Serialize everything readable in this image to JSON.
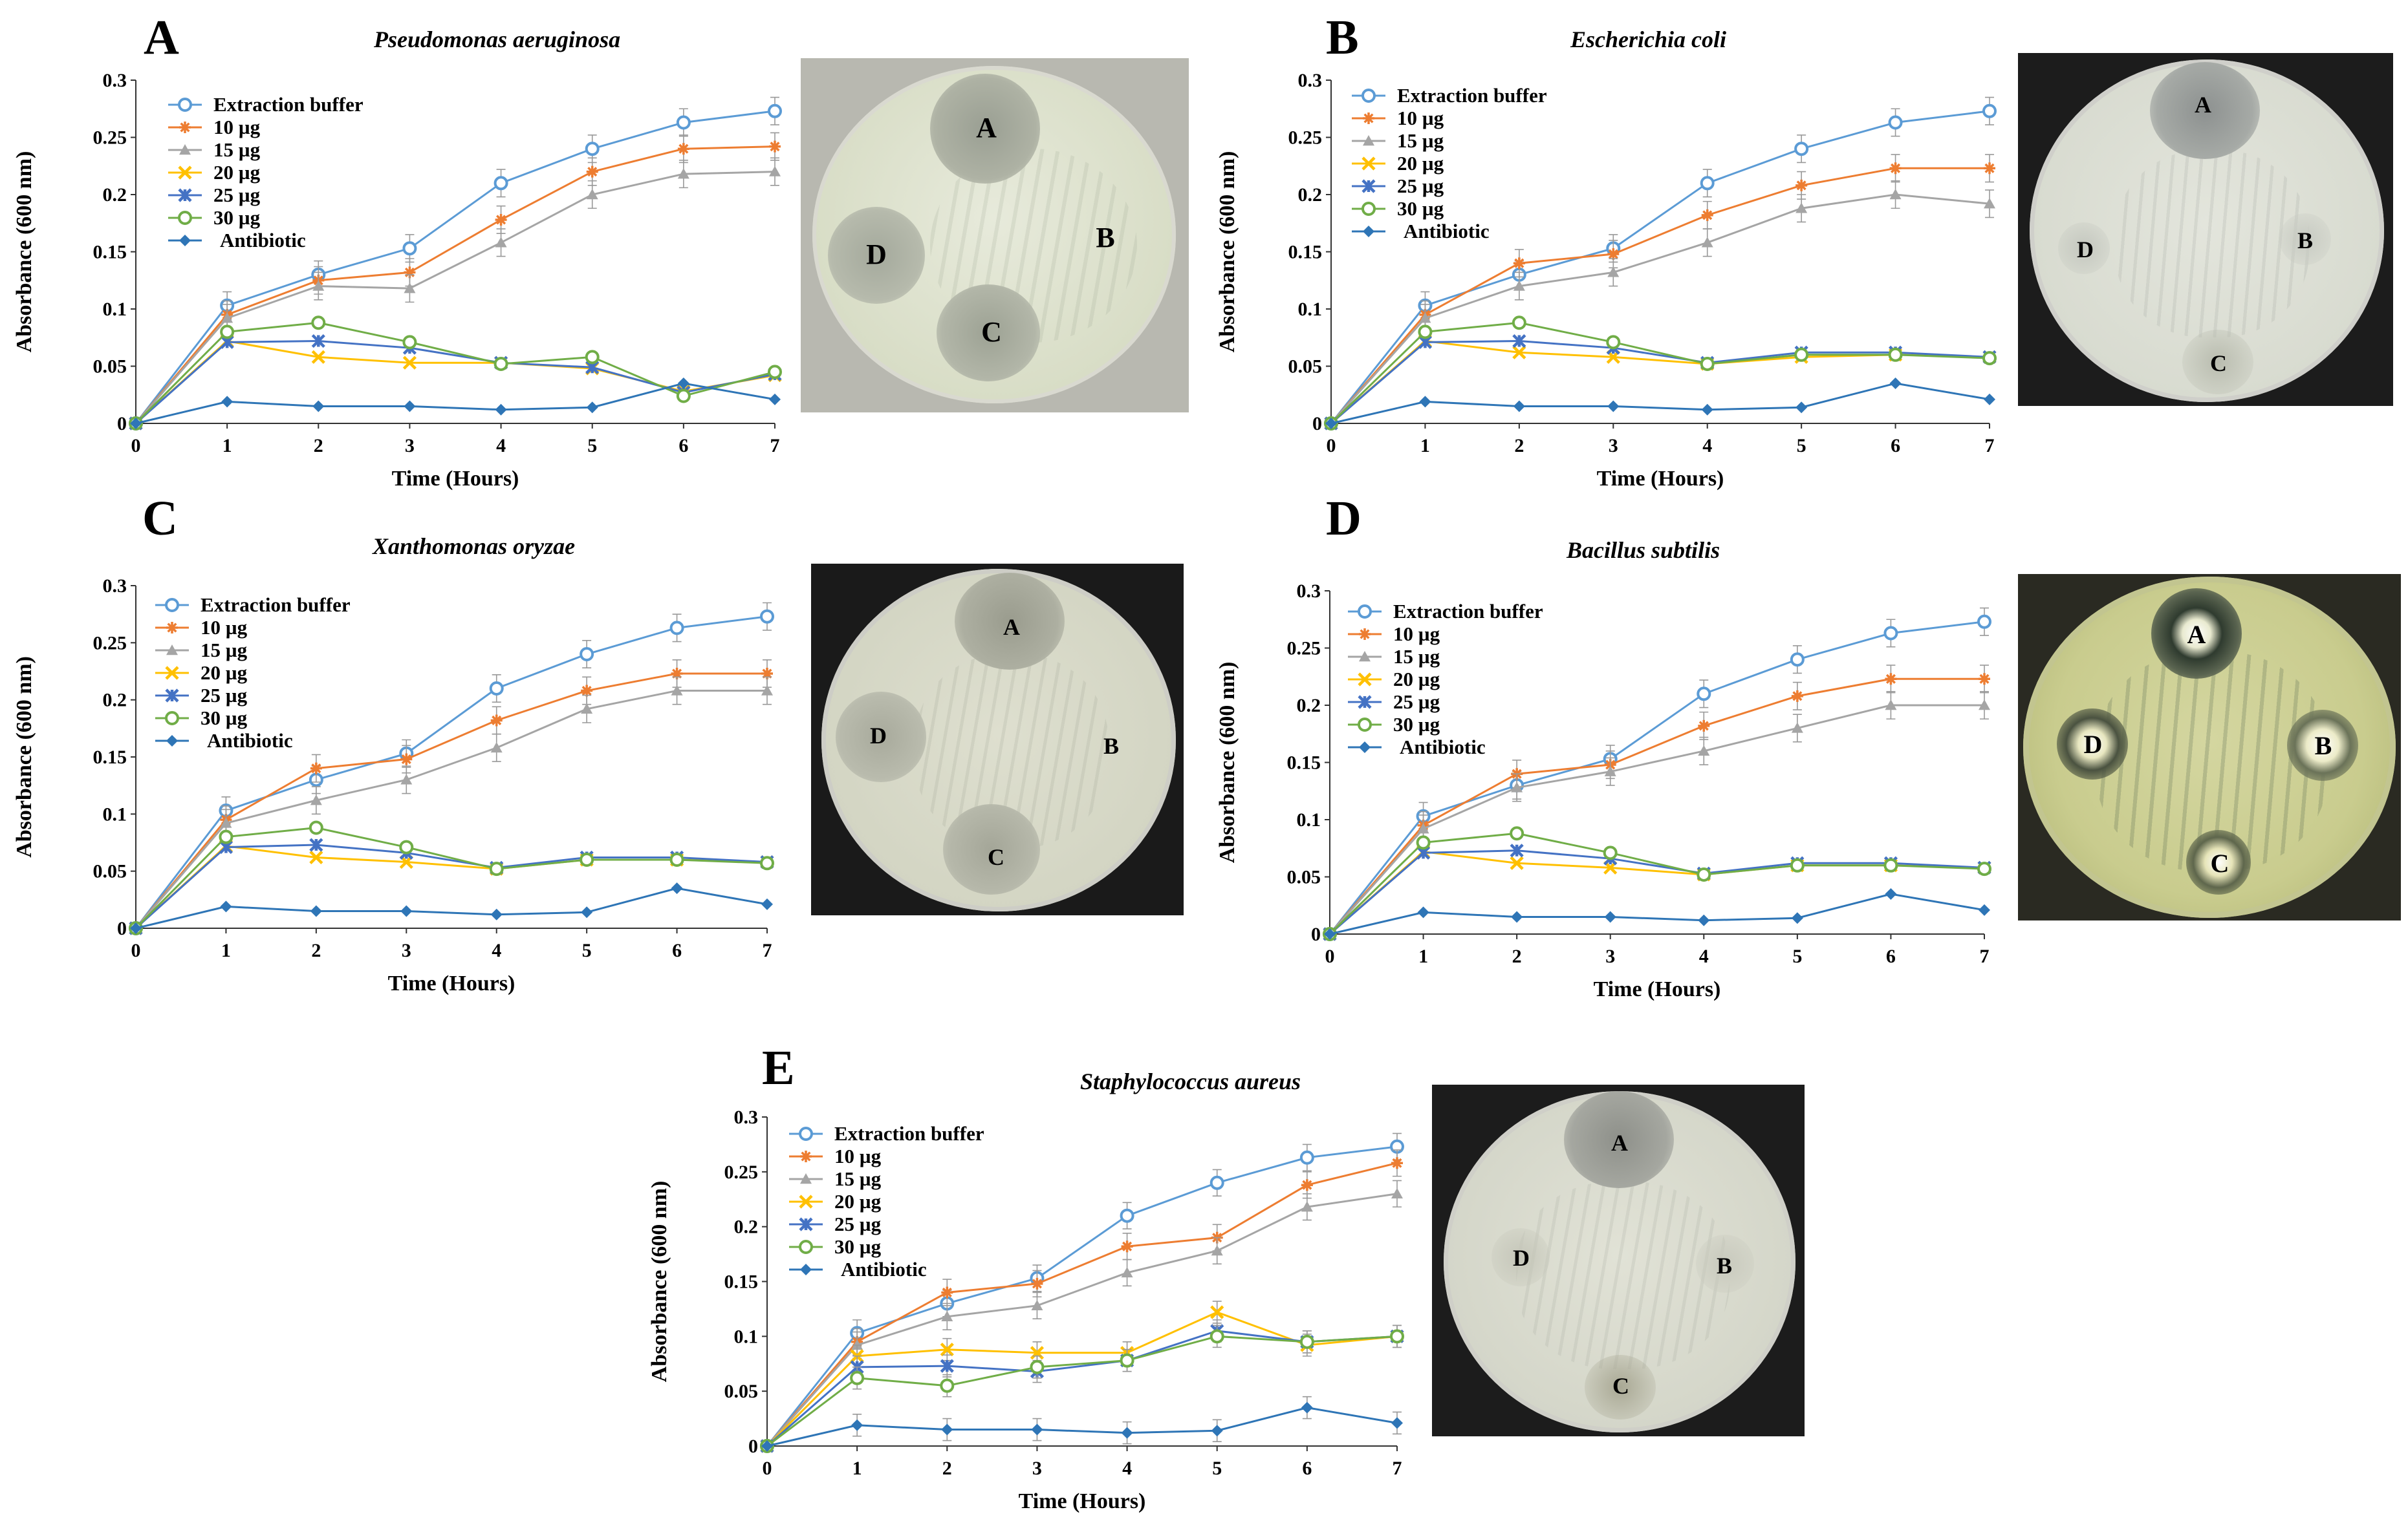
{
  "chart_data": [
    {
      "panel": "A",
      "title": "Pseudomonas aeruginosa",
      "type": "line",
      "xlabel": "Time (Hours)",
      "ylabel": "Absorbance (600 nm)",
      "x": [
        0,
        1,
        2,
        3,
        4,
        5,
        6,
        7
      ],
      "xlim": [
        0,
        7
      ],
      "ylim": [
        0,
        0.3
      ],
      "yticks": [
        "0",
        "0.05",
        "0.1",
        "0.15",
        "0.2",
        "0.25",
        "0.3"
      ],
      "xticks": [
        "0",
        "1",
        "2",
        "3",
        "4",
        "5",
        "6",
        "7"
      ],
      "legend_position": "top-left",
      "series": [
        {
          "name": "Extraction buffer",
          "values": [
            0,
            0.103,
            0.13,
            0.153,
            0.21,
            0.24,
            0.263,
            0.273
          ]
        },
        {
          "name": "10 µg",
          "values": [
            0,
            0.095,
            0.125,
            0.132,
            0.178,
            0.22,
            0.24,
            0.242
          ]
        },
        {
          "name": "15 µg",
          "values": [
            0,
            0.092,
            0.12,
            0.118,
            0.158,
            0.2,
            0.218,
            0.22
          ]
        },
        {
          "name": "20 µg",
          "values": [
            0,
            0.072,
            0.058,
            0.053,
            0.053,
            0.048,
            0.028,
            0.042
          ]
        },
        {
          "name": "25 µg",
          "values": [
            0,
            0.071,
            0.072,
            0.066,
            0.053,
            0.049,
            0.027,
            0.043
          ]
        },
        {
          "name": "30 µg",
          "values": [
            0,
            0.08,
            0.088,
            0.071,
            0.052,
            0.058,
            0.024,
            0.045
          ]
        },
        {
          "name": "Antibiotic",
          "values": [
            0,
            0.019,
            0.015,
            0.015,
            0.012,
            0.014,
            0.035,
            0.021
          ]
        }
      ],
      "plate_labels": [
        "A",
        "B",
        "C",
        "D"
      ]
    },
    {
      "panel": "B",
      "title": "Escherichia coli",
      "type": "line",
      "xlabel": "Time (Hours)",
      "ylabel": "Absorbance (600 nm)",
      "x": [
        0,
        1,
        2,
        3,
        4,
        5,
        6,
        7
      ],
      "xlim": [
        0,
        7
      ],
      "ylim": [
        0,
        0.3
      ],
      "yticks": [
        "0",
        "0.05",
        "0.1",
        "0.15",
        "0.2",
        "0.25",
        "0.3"
      ],
      "xticks": [
        "0",
        "1",
        "2",
        "3",
        "4",
        "5",
        "6",
        "7"
      ],
      "legend_position": "top-left",
      "series": [
        {
          "name": "Extraction buffer",
          "values": [
            0,
            0.103,
            0.13,
            0.153,
            0.21,
            0.24,
            0.263,
            0.273
          ]
        },
        {
          "name": "10 µg",
          "values": [
            0,
            0.095,
            0.14,
            0.148,
            0.182,
            0.208,
            0.223,
            0.223
          ]
        },
        {
          "name": "15 µg",
          "values": [
            0,
            0.092,
            0.12,
            0.132,
            0.158,
            0.188,
            0.2,
            0.192
          ]
        },
        {
          "name": "20 µg",
          "values": [
            0,
            0.072,
            0.062,
            0.058,
            0.052,
            0.058,
            0.06,
            0.058
          ]
        },
        {
          "name": "25 µg",
          "values": [
            0,
            0.071,
            0.072,
            0.066,
            0.053,
            0.062,
            0.062,
            0.058
          ]
        },
        {
          "name": "30 µg",
          "values": [
            0,
            0.08,
            0.088,
            0.071,
            0.052,
            0.06,
            0.06,
            0.057
          ]
        },
        {
          "name": "Antibiotic",
          "values": [
            0,
            0.019,
            0.015,
            0.015,
            0.012,
            0.014,
            0.035,
            0.021
          ]
        }
      ],
      "plate_labels": [
        "A",
        "B",
        "C",
        "D"
      ]
    },
    {
      "panel": "C",
      "title": "Xanthomonas oryzae",
      "type": "line",
      "xlabel": "Time (Hours)",
      "ylabel": "Absorbance (600 nm)",
      "x": [
        0,
        1,
        2,
        3,
        4,
        5,
        6,
        7
      ],
      "xlim": [
        0,
        7
      ],
      "ylim": [
        0,
        0.3
      ],
      "yticks": [
        "0",
        "0.05",
        "0.1",
        "0.15",
        "0.2",
        "0.25",
        "0.3"
      ],
      "xticks": [
        "0",
        "1",
        "2",
        "3",
        "4",
        "5",
        "6",
        "7"
      ],
      "legend_position": "top-left",
      "series": [
        {
          "name": "Extraction buffer",
          "values": [
            0,
            0.103,
            0.13,
            0.153,
            0.21,
            0.24,
            0.263,
            0.273
          ]
        },
        {
          "name": "10 µg",
          "values": [
            0,
            0.095,
            0.14,
            0.148,
            0.182,
            0.208,
            0.223,
            0.223
          ]
        },
        {
          "name": "15 µg",
          "values": [
            0,
            0.092,
            0.112,
            0.13,
            0.158,
            0.192,
            0.208,
            0.208
          ]
        },
        {
          "name": "20 µg",
          "values": [
            0,
            0.072,
            0.062,
            0.058,
            0.052,
            0.06,
            0.06,
            0.058
          ]
        },
        {
          "name": "25 µg",
          "values": [
            0,
            0.071,
            0.073,
            0.066,
            0.053,
            0.062,
            0.062,
            0.058
          ]
        },
        {
          "name": "30 µg",
          "values": [
            0,
            0.08,
            0.088,
            0.071,
            0.052,
            0.06,
            0.06,
            0.057
          ]
        },
        {
          "name": "Antibiotic",
          "values": [
            0,
            0.019,
            0.015,
            0.015,
            0.012,
            0.014,
            0.035,
            0.021
          ]
        }
      ],
      "plate_labels": [
        "A",
        "B",
        "C",
        "D"
      ]
    },
    {
      "panel": "D",
      "title": "Bacillus subtilis",
      "type": "line",
      "xlabel": "Time (Hours)",
      "ylabel": "Absorbance (600 nm)",
      "x": [
        0,
        1,
        2,
        3,
        4,
        5,
        6,
        7
      ],
      "xlim": [
        0,
        7
      ],
      "ylim": [
        0,
        0.3
      ],
      "yticks": [
        "0",
        "0.05",
        "0.1",
        "0.15",
        "0.2",
        "0.25",
        "0.3"
      ],
      "xticks": [
        "0",
        "1",
        "2",
        "3",
        "4",
        "5",
        "6",
        "7"
      ],
      "legend_position": "top-left",
      "series": [
        {
          "name": "Extraction buffer",
          "values": [
            0,
            0.103,
            0.13,
            0.153,
            0.21,
            0.24,
            0.263,
            0.273
          ]
        },
        {
          "name": "10 µg",
          "values": [
            0,
            0.095,
            0.14,
            0.148,
            0.182,
            0.208,
            0.223,
            0.223
          ]
        },
        {
          "name": "15 µg",
          "values": [
            0,
            0.092,
            0.128,
            0.142,
            0.16,
            0.18,
            0.2,
            0.2
          ]
        },
        {
          "name": "20 µg",
          "values": [
            0,
            0.072,
            0.062,
            0.058,
            0.052,
            0.06,
            0.06,
            0.058
          ]
        },
        {
          "name": "25 µg",
          "values": [
            0,
            0.071,
            0.073,
            0.066,
            0.053,
            0.062,
            0.062,
            0.058
          ]
        },
        {
          "name": "30 µg",
          "values": [
            0,
            0.08,
            0.088,
            0.071,
            0.052,
            0.06,
            0.06,
            0.057
          ]
        },
        {
          "name": "Antibiotic",
          "values": [
            0,
            0.019,
            0.015,
            0.015,
            0.012,
            0.014,
            0.035,
            0.021
          ]
        }
      ],
      "plate_labels": [
        "A",
        "B",
        "C",
        "D"
      ]
    },
    {
      "panel": "E",
      "title": "Staphylococcus aureus",
      "type": "line",
      "xlabel": "Time (Hours)",
      "ylabel": "Absorbance (600 nm)",
      "x": [
        0,
        1,
        2,
        3,
        4,
        5,
        6,
        7
      ],
      "xlim": [
        0,
        7
      ],
      "ylim": [
        0,
        0.3
      ],
      "yticks": [
        "0",
        "0.05",
        "0.1",
        "0.15",
        "0.2",
        "0.25",
        "0.3"
      ],
      "xticks": [
        "0",
        "1",
        "2",
        "3",
        "4",
        "5",
        "6",
        "7"
      ],
      "legend_position": "top-left",
      "series": [
        {
          "name": "Extraction buffer",
          "values": [
            0,
            0.103,
            0.13,
            0.153,
            0.21,
            0.24,
            0.263,
            0.273
          ]
        },
        {
          "name": "10 µg",
          "values": [
            0,
            0.095,
            0.14,
            0.148,
            0.182,
            0.19,
            0.238,
            0.258
          ]
        },
        {
          "name": "15 µg",
          "values": [
            0,
            0.092,
            0.118,
            0.128,
            0.158,
            0.178,
            0.218,
            0.23
          ]
        },
        {
          "name": "20 µg",
          "values": [
            0,
            0.082,
            0.088,
            0.085,
            0.085,
            0.122,
            0.092,
            0.1
          ]
        },
        {
          "name": "25 µg",
          "values": [
            0,
            0.072,
            0.073,
            0.068,
            0.078,
            0.105,
            0.095,
            0.1
          ]
        },
        {
          "name": "30 µg",
          "values": [
            0,
            0.062,
            0.055,
            0.072,
            0.078,
            0.1,
            0.095,
            0.1
          ]
        },
        {
          "name": "Antibiotic",
          "values": [
            0,
            0.019,
            0.015,
            0.015,
            0.012,
            0.014,
            0.035,
            0.021
          ]
        }
      ],
      "plate_labels": [
        "A",
        "B",
        "C",
        "D"
      ]
    }
  ],
  "series_style": [
    {
      "color": "#5B9BD5",
      "marker": "circle-open"
    },
    {
      "color": "#ED7D31",
      "marker": "plus"
    },
    {
      "color": "#A5A5A5",
      "marker": "triangle"
    },
    {
      "color": "#FFC000",
      "marker": "x"
    },
    {
      "color": "#4472C4",
      "marker": "star"
    },
    {
      "color": "#70AD47",
      "marker": "circle-open"
    },
    {
      "color": "#2E75B6",
      "marker": "diamond"
    }
  ]
}
